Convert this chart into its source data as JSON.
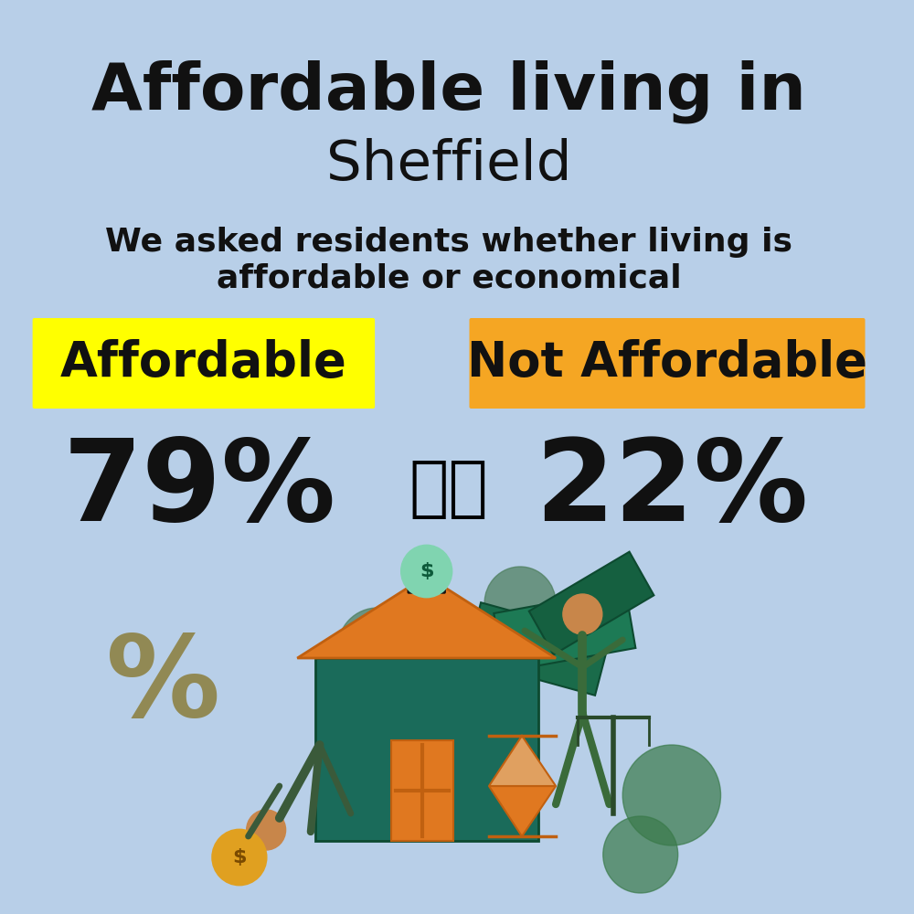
{
  "background_color": "#b8cfe8",
  "title_bold": "Affordable living in",
  "title_regular": "Sheffield",
  "subtitle": "We asked residents whether living is\naffordable or economical",
  "label_left": "Affordable",
  "label_right": "Not Affordable",
  "label_left_color": "#ffff00",
  "label_right_color": "#f5a623",
  "value_left": "79%",
  "value_right": "22%",
  "title_bold_fontsize": 52,
  "title_regular_fontsize": 44,
  "subtitle_fontsize": 26,
  "label_fontsize": 38,
  "value_fontsize": 90,
  "text_color": "#111111"
}
